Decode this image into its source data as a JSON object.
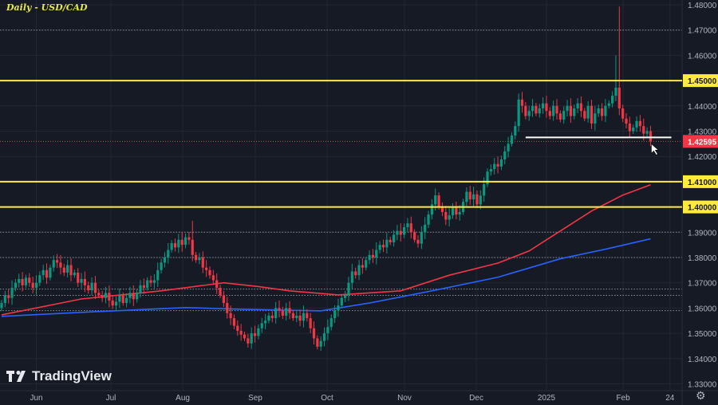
{
  "chart_data": {
    "type": "candlestick",
    "title": "Daily - USD/CAD",
    "ylim": [
      1.33,
      1.48
    ],
    "y_ticks": [
      "1.33000",
      "1.34000",
      "1.35000",
      "1.36000",
      "1.37000",
      "1.38000",
      "1.39000",
      "1.40000",
      "1.41000",
      "1.42000",
      "1.43000",
      "1.44000",
      "1.45000",
      "1.46000",
      "1.47000",
      "1.48000"
    ],
    "x_ticks": [
      {
        "label": "Jun",
        "bar": 10
      },
      {
        "label": "Jul",
        "bar": 31.5
      },
      {
        "label": "Aug",
        "bar": 52.2
      },
      {
        "label": "Sep",
        "bar": 73.1
      },
      {
        "label": "Oct",
        "bar": 93.8
      },
      {
        "label": "Nov",
        "bar": 116.1
      },
      {
        "label": "Dec",
        "bar": 136.8
      },
      {
        "label": "2025",
        "bar": 157
      },
      {
        "label": "Feb",
        "bar": 179.1
      },
      {
        "label": "24",
        "bar": 192.6
      }
    ],
    "closes": [
      1.362,
      1.365,
      1.364,
      1.368,
      1.37,
      1.3715,
      1.369,
      1.372,
      1.37,
      1.368,
      1.37,
      1.373,
      1.375,
      1.372,
      1.376,
      1.379,
      1.378,
      1.376,
      1.374,
      1.377,
      1.373,
      1.374,
      1.37,
      1.3715,
      1.369,
      1.367,
      1.37,
      1.366,
      1.365,
      1.364,
      1.366,
      1.363,
      1.361,
      1.3625,
      1.365,
      1.362,
      1.364,
      1.366,
      1.3635,
      1.366,
      1.369,
      1.368,
      1.371,
      1.37,
      1.371,
      1.375,
      1.378,
      1.38,
      1.383,
      1.3857,
      1.384,
      1.387,
      1.385,
      1.388,
      1.387,
      1.381,
      1.379,
      1.38,
      1.376,
      1.375,
      1.373,
      1.371,
      1.368,
      1.365,
      1.362,
      1.358,
      1.356,
      1.353,
      1.351,
      1.3495,
      1.348,
      1.346,
      1.35,
      1.349,
      1.352,
      1.354,
      1.355,
      1.357,
      1.356,
      1.36,
      1.359,
      1.357,
      1.36,
      1.358,
      1.356,
      1.357,
      1.355,
      1.358,
      1.356,
      1.352,
      1.348,
      1.3447,
      1.347,
      1.35,
      1.3525,
      1.356,
      1.359,
      1.361,
      1.364,
      1.365,
      1.37,
      1.3745,
      1.373,
      1.377,
      1.376,
      1.379,
      1.381,
      1.38,
      1.383,
      1.385,
      1.384,
      1.387,
      1.386,
      1.389,
      1.3905,
      1.389,
      1.392,
      1.3935,
      1.39,
      1.387,
      1.3855,
      1.39,
      1.393,
      1.397,
      1.401,
      1.4046,
      1.4,
      1.398,
      1.395,
      1.3967,
      1.4,
      1.397,
      1.398,
      1.402,
      1.406,
      1.403,
      1.405,
      1.401,
      1.4045,
      1.409,
      1.414,
      1.415,
      1.417,
      1.416,
      1.4188,
      1.422,
      1.425,
      1.4283,
      1.432,
      1.4425,
      1.44,
      1.436,
      1.438,
      1.44,
      1.437,
      1.439,
      1.441,
      1.438,
      1.436,
      1.44,
      1.437,
      1.4346,
      1.438,
      1.44,
      1.436,
      1.439,
      1.441,
      1.438,
      1.435,
      1.44,
      1.433,
      1.437,
      1.439,
      1.436,
      1.44,
      1.441,
      1.444,
      1.4472,
      1.439,
      1.435,
      1.433,
      1.43,
      1.4314,
      1.434,
      1.432,
      1.429,
      1.43,
      1.42595
    ],
    "high_overrides": {
      "177": 1.46,
      "178": 1.4793,
      "55": 1.3945
    },
    "moving_averages": [
      {
        "color": "#f23645",
        "points": [
          [
            0,
            1.3573
          ],
          [
            23,
            1.3636
          ],
          [
            46,
            1.3668
          ],
          [
            64,
            1.37
          ],
          [
            74,
            1.3685
          ],
          [
            83,
            1.3668
          ],
          [
            97,
            1.3652
          ],
          [
            115,
            1.3668
          ],
          [
            129,
            1.373
          ],
          [
            143,
            1.3778
          ],
          [
            152,
            1.3826
          ],
          [
            161,
            1.3905
          ],
          [
            170,
            1.3984
          ],
          [
            179,
            1.4047
          ],
          [
            187,
            1.4088
          ]
        ]
      },
      {
        "color": "#2962ff",
        "points": [
          [
            0,
            1.3567
          ],
          [
            23,
            1.3583
          ],
          [
            53,
            1.3602
          ],
          [
            69,
            1.3595
          ],
          [
            92,
            1.3589
          ],
          [
            106,
            1.362
          ],
          [
            124,
            1.3668
          ],
          [
            143,
            1.3722
          ],
          [
            161,
            1.3795
          ],
          [
            175,
            1.3836
          ],
          [
            187,
            1.3874
          ]
        ]
      }
    ],
    "levels": [
      {
        "price": 1.45,
        "label": "1.45000",
        "color": "#ffeb3b"
      },
      {
        "price": 1.41,
        "label": "1.41000",
        "color": "#ffeb3b"
      },
      {
        "price": 1.4,
        "label": "1.40000",
        "color": "#ffeb3b"
      }
    ],
    "support_line": {
      "price": 1.4275,
      "from_bar": 151,
      "to_bar": 193,
      "color": "#ffffff"
    },
    "dotted_levels": [
      1.47,
      1.39,
      1.38,
      1.3675,
      1.365,
      1.359
    ],
    "last_price": {
      "price": 1.42595,
      "label": "1.42595",
      "color": "#f23645"
    },
    "up_color": "#089981",
    "down_color": "#f23645"
  },
  "branding": {
    "logo_text": "TradingView"
  }
}
